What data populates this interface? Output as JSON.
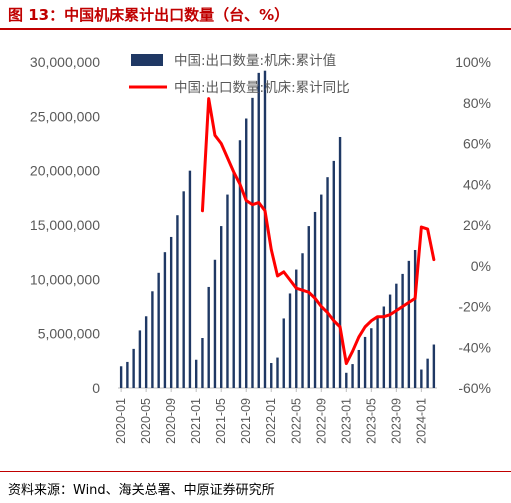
{
  "header": {
    "title": "图 13：中国机床累计出口数量（台、%）"
  },
  "footer": {
    "source": "资料来源：Wind、海关总署、中原证券研究所"
  },
  "colors": {
    "bar": "#1f3864",
    "line": "#ff0000",
    "accent": "#c00000",
    "text": "#595959"
  },
  "chart_data": {
    "type": "bar+line",
    "left_axis": {
      "min": 0,
      "max": 30000000,
      "step": 5000000,
      "tick_labels": [
        "0",
        "5,000,000",
        "10,000,000",
        "15,000,000",
        "20,000,000",
        "25,000,000",
        "30,000,000"
      ]
    },
    "right_axis": {
      "min": -60,
      "max": 100,
      "step": 20,
      "tick_labels": [
        "-60%",
        "-40%",
        "-20%",
        "0%",
        "20%",
        "40%",
        "60%",
        "80%",
        "100%"
      ]
    },
    "x_tick_labels": [
      "2020-01",
      "2020-05",
      "2020-09",
      "2021-01",
      "2021-05",
      "2021-09",
      "2022-01",
      "2022-05",
      "2022-09",
      "2023-01",
      "2023-05",
      "2023-09",
      "2024-01"
    ],
    "legend": [
      {
        "name": "中国:出口数量:机床:累计值",
        "kind": "bar"
      },
      {
        "name": "中国:出口数量:机床:累计同比",
        "kind": "line"
      }
    ],
    "series": [
      {
        "name": "中国:出口数量:机床:累计值",
        "kind": "bar",
        "axis": "left",
        "values": [
          2000000,
          2400000,
          3600000,
          5300000,
          6600000,
          8900000,
          10600000,
          12500000,
          13900000,
          15900000,
          18100000,
          20000000,
          2600000,
          4600000,
          9300000,
          11800000,
          14900000,
          17800000,
          19900000,
          22800000,
          24800000,
          26700000,
          29000000,
          29200000,
          2300000,
          2800000,
          6400000,
          8700000,
          10900000,
          12400000,
          14900000,
          16200000,
          17800000,
          19400000,
          20900000,
          23100000,
          1400000,
          2200000,
          3500000,
          4700000,
          5500000,
          6500000,
          7500000,
          8600000,
          9600000,
          10500000,
          11700000,
          12700000,
          1700000,
          2700000,
          4000000
        ]
      },
      {
        "name": "中国:出口数量:机床:累计同比",
        "kind": "line",
        "axis": "right",
        "points": [
          {
            "index": 13,
            "value": 27
          },
          {
            "index": 14,
            "value": 82
          },
          {
            "index": 15,
            "value": 64
          },
          {
            "index": 16,
            "value": 60
          },
          {
            "index": 17,
            "value": 53
          },
          {
            "index": 18,
            "value": 46
          },
          {
            "index": 19,
            "value": 40
          },
          {
            "index": 20,
            "value": 32
          },
          {
            "index": 21,
            "value": 30
          },
          {
            "index": 22,
            "value": 31
          },
          {
            "index": 23,
            "value": 27
          },
          {
            "index": 24,
            "value": 8
          },
          {
            "index": 25,
            "value": -5
          },
          {
            "index": 26,
            "value": -3
          },
          {
            "index": 27,
            "value": -7
          },
          {
            "index": 28,
            "value": -11
          },
          {
            "index": 29,
            "value": -12
          },
          {
            "index": 30,
            "value": -13
          },
          {
            "index": 31,
            "value": -16
          },
          {
            "index": 32,
            "value": -20
          },
          {
            "index": 33,
            "value": -23
          },
          {
            "index": 34,
            "value": -27
          },
          {
            "index": 35,
            "value": -30
          },
          {
            "index": 36,
            "value": -48
          },
          {
            "index": 37,
            "value": -42
          },
          {
            "index": 38,
            "value": -35
          },
          {
            "index": 39,
            "value": -30
          },
          {
            "index": 40,
            "value": -27
          },
          {
            "index": 41,
            "value": -25
          },
          {
            "index": 42,
            "value": -25
          },
          {
            "index": 43,
            "value": -24
          },
          {
            "index": 44,
            "value": -22
          },
          {
            "index": 45,
            "value": -20
          },
          {
            "index": 46,
            "value": -18
          },
          {
            "index": 47,
            "value": -16
          },
          {
            "index": 48,
            "value": 19
          },
          {
            "index": 49,
            "value": 18
          },
          {
            "index": 50,
            "value": 3
          }
        ]
      }
    ]
  }
}
